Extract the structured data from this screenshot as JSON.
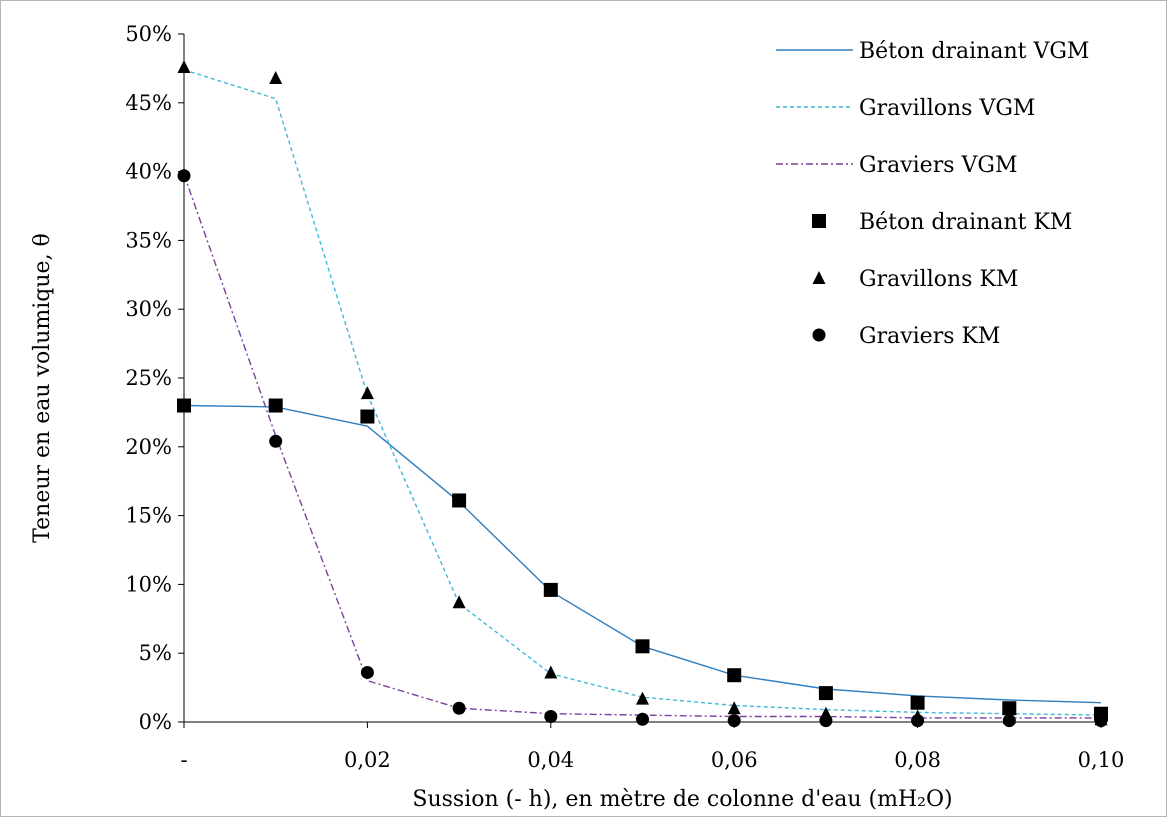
{
  "chart_data": {
    "type": "scatter",
    "title": "",
    "xlabel": "Sussion (- h), en mètre de colonne d'eau (mH₂O)",
    "ylabel": "Teneur en eau volumique, θ",
    "xlim": [
      0,
      0.1
    ],
    "ylim": [
      0,
      0.5
    ],
    "x_tick_labels": [
      "-",
      "0,02",
      "0,04",
      "0,06",
      "0,08",
      "0,10"
    ],
    "x_tick_values": [
      0,
      0.02,
      0.04,
      0.06,
      0.08,
      0.1
    ],
    "y_tick_labels": [
      "0%",
      "5%",
      "10%",
      "15%",
      "20%",
      "25%",
      "30%",
      "35%",
      "40%",
      "45%",
      "50%"
    ],
    "y_tick_values": [
      0,
      0.05,
      0.1,
      0.15,
      0.2,
      0.25,
      0.3,
      0.35,
      0.4,
      0.45,
      0.5
    ],
    "grid": false,
    "legend_position": "top-right",
    "series": [
      {
        "name": "Béton drainant VGM",
        "kind": "line",
        "style": "solid",
        "color": "#2f7fc1",
        "x": [
          0,
          0.01,
          0.02,
          0.03,
          0.04,
          0.05,
          0.06,
          0.07,
          0.08,
          0.09,
          0.1
        ],
        "y": [
          0.23,
          0.229,
          0.215,
          0.16,
          0.095,
          0.055,
          0.034,
          0.024,
          0.019,
          0.016,
          0.014
        ]
      },
      {
        "name": "Gravillons VGM",
        "kind": "line",
        "style": "dashed",
        "color": "#3fb9d8",
        "x": [
          0,
          0.01,
          0.02,
          0.03,
          0.04,
          0.05,
          0.06,
          0.07,
          0.08,
          0.09,
          0.1
        ],
        "y": [
          0.474,
          0.453,
          0.238,
          0.086,
          0.035,
          0.018,
          0.012,
          0.009,
          0.007,
          0.006,
          0.005
        ]
      },
      {
        "name": "Graviers VGM",
        "kind": "line",
        "style": "dash-dot",
        "color": "#7a3f9e",
        "x": [
          0,
          0.01,
          0.02,
          0.03,
          0.04,
          0.05,
          0.06,
          0.07,
          0.08,
          0.09,
          0.1
        ],
        "y": [
          0.398,
          0.208,
          0.03,
          0.01,
          0.006,
          0.005,
          0.004,
          0.004,
          0.003,
          0.003,
          0.003
        ]
      },
      {
        "name": "Béton drainant KM",
        "kind": "marker",
        "marker": "square",
        "color": "#000000",
        "x": [
          0,
          0.01,
          0.02,
          0.03,
          0.04,
          0.05,
          0.06,
          0.07,
          0.08,
          0.09,
          0.1
        ],
        "y": [
          0.23,
          0.23,
          0.222,
          0.161,
          0.096,
          0.055,
          0.034,
          0.021,
          0.014,
          0.01,
          0.006
        ]
      },
      {
        "name": "Gravillons KM",
        "kind": "marker",
        "marker": "triangle",
        "color": "#000000",
        "x": [
          0,
          0.01,
          0.02,
          0.03,
          0.04,
          0.05,
          0.06,
          0.07,
          0.08,
          0.09,
          0.1
        ],
        "y": [
          0.476,
          0.468,
          0.239,
          0.087,
          0.036,
          0.017,
          0.01,
          0.006,
          0.004,
          0.003,
          0.002
        ]
      },
      {
        "name": "Graviers KM",
        "kind": "marker",
        "marker": "circle",
        "color": "#000000",
        "x": [
          0,
          0.01,
          0.02,
          0.03,
          0.04,
          0.05,
          0.06,
          0.07,
          0.08,
          0.09,
          0.1
        ],
        "y": [
          0.397,
          0.204,
          0.036,
          0.01,
          0.004,
          0.002,
          0.001,
          0.001,
          0.001,
          0.001,
          0.001
        ]
      }
    ]
  }
}
